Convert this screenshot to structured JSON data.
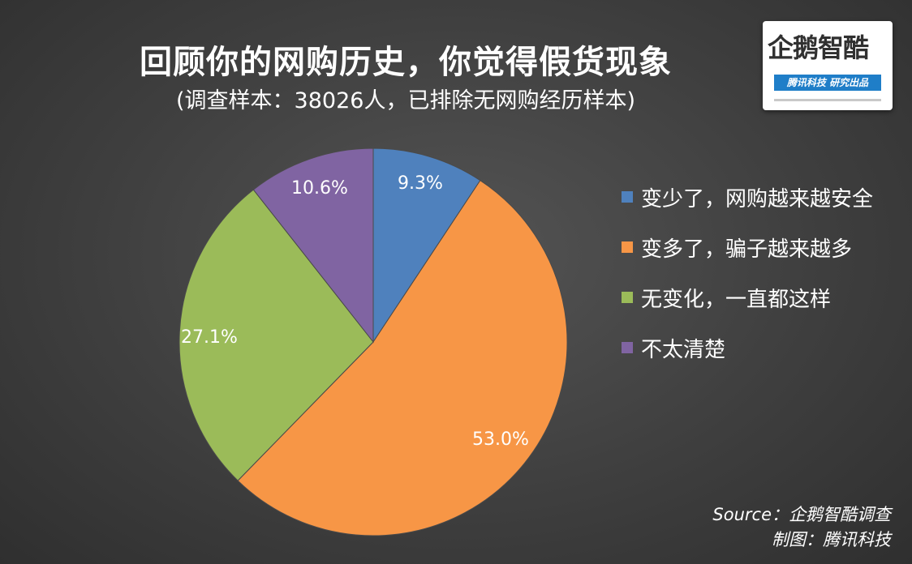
{
  "header": {
    "title": "回顾你的网购历史，你觉得假货现象",
    "subtitle": "(调查样本：38026人，已排除无网购经历样本)"
  },
  "logo": {
    "name": "企鹅智酷",
    "tagline": "腾讯科技  研究出品",
    "bar_color": "#1f7ec8"
  },
  "chart_data": {
    "type": "pie",
    "title": "回顾你的网购历史，你觉得假货现象",
    "subtitle": "(调查样本：38026人，已排除无网购经历样本)",
    "legend_position": "right",
    "start_angle": "12 o'clock, clockwise",
    "slices": [
      {
        "label": "变少了，网购越来越安全",
        "value": 9.3,
        "display": "9.3%",
        "color": "#4f81bd"
      },
      {
        "label": "变多了，骗子越来越多",
        "value": 53.0,
        "display": "53.0%",
        "color": "#f79646"
      },
      {
        "label": "无变化，一直都这样",
        "value": 27.1,
        "display": "27.1%",
        "color": "#9bbb59"
      },
      {
        "label": "不太清楚",
        "value": 10.6,
        "display": "10.6%",
        "color": "#8064a2"
      }
    ]
  },
  "footer": {
    "source": "Source：企鹅智酷调查",
    "credit": "制图：腾讯科技"
  }
}
